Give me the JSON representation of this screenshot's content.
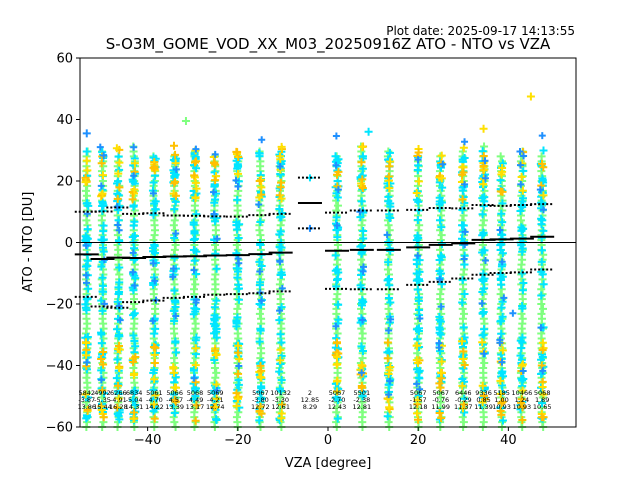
{
  "chart_data": {
    "type": "scatter",
    "title": "S-O3M_GOME_VOD_XX_M03_20250916Z ATO - NTO vs VZA",
    "plot_date": "Plot date: 2025-09-17 14:13:55",
    "xlabel": "VZA [degree]",
    "ylabel": "ATO - NTO [DU]",
    "xlim": [
      -55,
      55
    ],
    "ylim": [
      -60,
      60
    ],
    "xticks": [
      -40,
      -20,
      0,
      20,
      40
    ],
    "yticks": [
      -60,
      -40,
      -20,
      0,
      20,
      40,
      60
    ],
    "grid": false,
    "legend": "none",
    "colors": {
      "green": "#7fff7f",
      "cyan": "#00e5ff",
      "blue": "#1e90ff",
      "orange": "#ffc000",
      "yellow": "#ffe000",
      "line": "#000000"
    },
    "columns": [
      {
        "x": -53.5,
        "count": "5842",
        "mean": "-3.87",
        "std": "13.86",
        "mean_v": -3.87,
        "upper": 10.0,
        "lower": -17.7
      },
      {
        "x": -50.0,
        "count": "4992",
        "mean": "-5.35",
        "std": "15.44",
        "mean_v": -5.35,
        "upper": 10.1,
        "lower": -20.8
      },
      {
        "x": -46.5,
        "count": "6266",
        "mean": "-4.91",
        "std": "16.28",
        "mean_v": -4.91,
        "upper": 11.4,
        "lower": -21.2
      },
      {
        "x": -43.0,
        "count": "6834",
        "mean": "-5.04",
        "std": "14.31",
        "mean_v": -5.04,
        "upper": 9.3,
        "lower": -19.4
      },
      {
        "x": -38.5,
        "count": "5061",
        "mean": "-4.70",
        "std": "14.22",
        "mean_v": -4.7,
        "upper": 9.5,
        "lower": -18.9
      },
      {
        "x": -34.0,
        "count": "5066",
        "mean": "-4.57",
        "std": "13.39",
        "mean_v": -4.57,
        "upper": 8.8,
        "lower": -18.0
      },
      {
        "x": -29.5,
        "count": "5068",
        "mean": "-4.49",
        "std": "13.17",
        "mean_v": -4.49,
        "upper": 8.7,
        "lower": -17.7
      },
      {
        "x": -25.0,
        "count": "5069",
        "mean": "-4.21",
        "std": "12.74",
        "mean_v": -4.21,
        "upper": 8.5,
        "lower": -17.0
      },
      {
        "x": -20.0,
        "count": "",
        "mean": "",
        "std": "",
        "mean_v": -4.1,
        "upper": 8.4,
        "lower": -16.8
      },
      {
        "x": -15.0,
        "count": "5067",
        "mean": "-3.80",
        "std": "12.72",
        "mean_v": -3.8,
        "upper": 8.9,
        "lower": -16.5
      },
      {
        "x": -10.5,
        "count": "10132",
        "mean": "-3.30",
        "std": "12.61",
        "mean_v": -3.3,
        "upper": 9.3,
        "lower": -15.9
      },
      {
        "x": -4.0,
        "count": "2",
        "mean": "12.85",
        "std": "8.29",
        "mean_v": 12.85,
        "upper": 21.1,
        "lower": 4.6
      },
      {
        "x": 2.0,
        "count": "5067",
        "mean": "-2.70",
        "std": "12.43",
        "mean_v": -2.7,
        "upper": 9.7,
        "lower": -15.1
      },
      {
        "x": 7.5,
        "count": "5501",
        "mean": "-2.38",
        "std": "12.81",
        "mean_v": -2.38,
        "upper": 10.4,
        "lower": -15.2
      },
      {
        "x": 13.5,
        "count": "",
        "mean": "",
        "std": "",
        "mean_v": -2.38,
        "upper": 10.4,
        "lower": -15.2
      },
      {
        "x": 20.0,
        "count": "5067",
        "mean": "-1.57",
        "std": "12.18",
        "mean_v": -1.57,
        "upper": 10.6,
        "lower": -13.8
      },
      {
        "x": 25.0,
        "count": "5067",
        "mean": "-0.76",
        "std": "11.99",
        "mean_v": -0.76,
        "upper": 11.2,
        "lower": -12.8
      },
      {
        "x": 30.0,
        "count": "6446",
        "mean": "-0.29",
        "std": "11.37",
        "mean_v": -0.29,
        "upper": 11.1,
        "lower": -11.7
      },
      {
        "x": 34.5,
        "count": "9336",
        "mean": "0.85",
        "std": "11.39",
        "mean_v": 0.85,
        "upper": 12.2,
        "lower": -10.5
      },
      {
        "x": 38.5,
        "count": "5185",
        "mean": "1.00",
        "std": "10.93",
        "mean_v": 1.0,
        "upper": 11.9,
        "lower": -9.9
      },
      {
        "x": 43.0,
        "count": "10466",
        "mean": "1.24",
        "std": "10.93",
        "mean_v": 1.24,
        "upper": 12.2,
        "lower": -9.7
      },
      {
        "x": 47.5,
        "count": "5068",
        "mean": "1.89",
        "std": "10.65",
        "mean_v": 1.89,
        "upper": 12.5,
        "lower": -8.8
      }
    ]
  }
}
